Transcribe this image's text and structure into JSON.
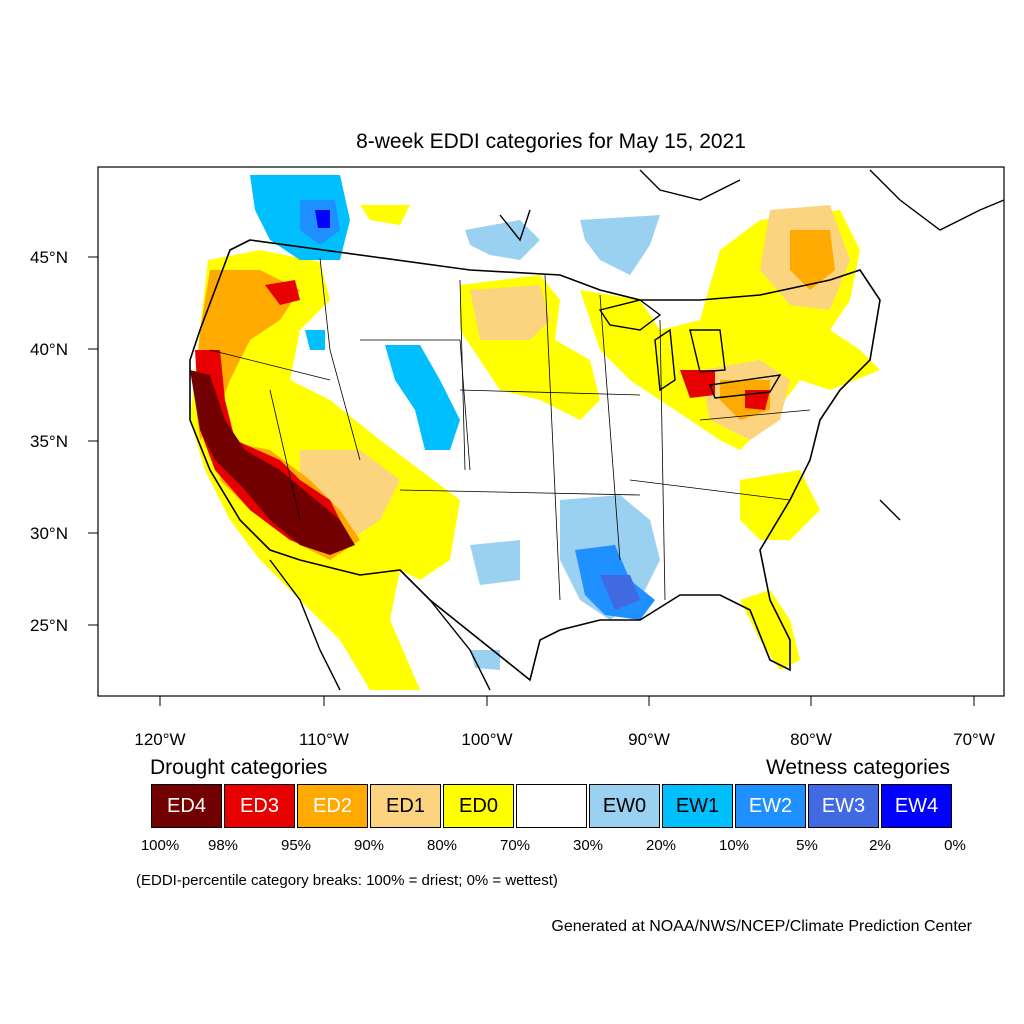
{
  "title": "8-week EDDI categories for May 15, 2021",
  "lat_labels": [
    "45°N",
    "40°N",
    "35°N",
    "30°N",
    "25°N"
  ],
  "lon_labels": [
    "120°W",
    "110°W",
    "100°W",
    "90°W",
    "80°W",
    "70°W"
  ],
  "legend": {
    "drought_heading": "Drought categories",
    "wetness_heading": "Wetness categories",
    "categories": [
      {
        "label": "ED4",
        "color": "#730000",
        "text_color": "#ffffff"
      },
      {
        "label": "ED3",
        "color": "#e60000",
        "text_color": "#ffffff"
      },
      {
        "label": "ED2",
        "color": "#ffaa00",
        "text_color": "#ffffff"
      },
      {
        "label": "ED1",
        "color": "#fcd37f",
        "text_color": "#000000"
      },
      {
        "label": "ED0",
        "color": "#ffff00",
        "text_color": "#000000"
      },
      {
        "label": "",
        "color": "#ffffff",
        "text_color": "#000000"
      },
      {
        "label": "EW0",
        "color": "#9ad0f0",
        "text_color": "#000000"
      },
      {
        "label": "EW1",
        "color": "#00bfff",
        "text_color": "#000000"
      },
      {
        "label": "EW2",
        "color": "#1e90ff",
        "text_color": "#ffffff"
      },
      {
        "label": "EW3",
        "color": "#4169e1",
        "text_color": "#ffffff"
      },
      {
        "label": "EW4",
        "color": "#0000ff",
        "text_color": "#ffffff"
      }
    ],
    "percentiles": [
      "100%",
      "98%",
      "95%",
      "90%",
      "80%",
      "70%",
      "30%",
      "20%",
      "10%",
      "5%",
      "2%",
      "0%"
    ]
  },
  "note": "(EDDI-percentile category breaks: 100% = driest; 0% = wettest)",
  "credit": "Generated at NOAA/NWS/NCEP/Climate Prediction Center"
}
